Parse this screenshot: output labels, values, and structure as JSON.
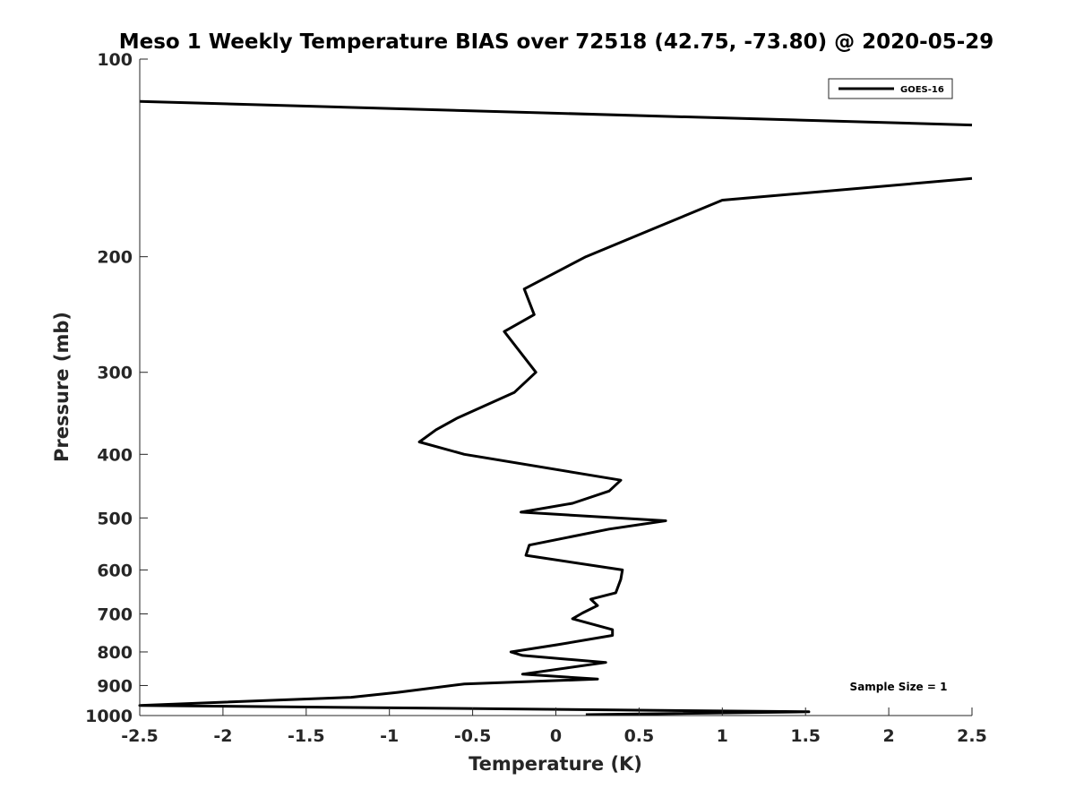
{
  "chart_data": {
    "type": "line",
    "title": "Meso 1 Weekly Temperature BIAS over 72518 (42.75, -73.80) @ 2020-05-29",
    "xlabel": "Temperature (K)",
    "ylabel": "Pressure (mb)",
    "xlim": [
      -2.5,
      2.5
    ],
    "ylim": [
      100,
      1000
    ],
    "y_scale": "log",
    "y_reversed": true,
    "x_ticks": [
      "-2.5",
      "-2",
      "-1.5",
      "-1",
      "-0.5",
      "0",
      "0.5",
      "1",
      "1.5",
      "2",
      "2.5"
    ],
    "y_ticks": [
      "100",
      "200",
      "300",
      "400",
      "500",
      "600",
      "700",
      "800",
      "900",
      "1000"
    ],
    "legend_position": "top-right",
    "annotation": "Sample Size = 1",
    "series": [
      {
        "name": "GOES-16",
        "color": "#000000",
        "x": [
          -2.5,
          2.5,
          null,
          2.5,
          1.0,
          0.18,
          -0.19,
          -0.13,
          -0.31,
          -0.12,
          -0.25,
          -0.59,
          -0.72,
          -0.82,
          -0.55,
          0.39,
          0.32,
          0.1,
          -0.21,
          0.66,
          0.32,
          -0.16,
          -0.18,
          0.4,
          0.39,
          0.36,
          0.21,
          0.25,
          0.16,
          0.1,
          0.34,
          0.34,
          0.01,
          -0.27,
          -0.2,
          0.3,
          -0.2,
          0.25,
          -0.55,
          -0.95,
          -1.23,
          -2.5,
          1.52,
          0.18
        ],
        "y": [
          116,
          126,
          null,
          152,
          164,
          200,
          224,
          245,
          260,
          300,
          322,
          352,
          367,
          383,
          400,
          438,
          455,
          475,
          490,
          505,
          520,
          550,
          570,
          600,
          620,
          650,
          665,
          680,
          698,
          712,
          740,
          755,
          780,
          800,
          810,
          830,
          865,
          880,
          895,
          922,
          938,
          965,
          987,
          997
        ]
      }
    ]
  }
}
